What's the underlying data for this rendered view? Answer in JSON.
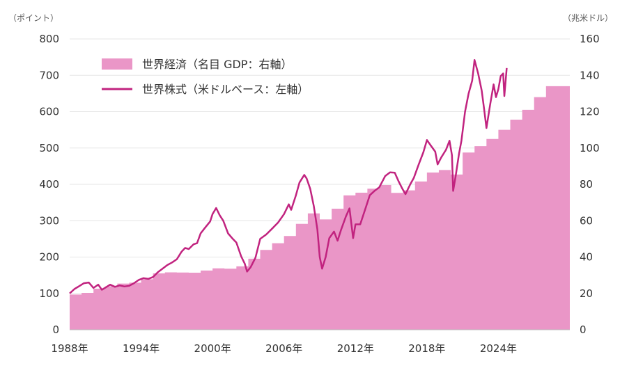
{
  "chart_data": {
    "type": "area",
    "left_unit": "（ポイント）",
    "right_unit": "（兆米ドル）",
    "left_axis": {
      "ylim": [
        0,
        800
      ],
      "ticks": [
        "0",
        "100",
        "200",
        "300",
        "400",
        "500",
        "600",
        "700",
        "800"
      ]
    },
    "right_axis": {
      "ylim": [
        0,
        160
      ],
      "ticks": [
        "0",
        "20",
        "40",
        "60",
        "80",
        "100",
        "120",
        "140",
        "160"
      ]
    },
    "x_range": [
      1988,
      2030
    ],
    "x_tick_values": [
      1988,
      1994,
      2000,
      2006,
      2012,
      2018,
      2024
    ],
    "x_tick_labels": [
      "1988年",
      "1994年",
      "2000年",
      "2006年",
      "2012年",
      "2018年",
      "2024年"
    ],
    "grid": true,
    "legend_position": "top-left",
    "series": [
      {
        "name": "世界経済（名目 GDP：右軸）",
        "kind": "step-area",
        "axis": "right",
        "color": "#ea96c7",
        "years": [
          1988,
          1989,
          1990,
          1991,
          1992,
          1993,
          1994,
          1995,
          1996,
          1997,
          1998,
          1999,
          2000,
          2001,
          2002,
          2003,
          2004,
          2005,
          2006,
          2007,
          2008,
          2009,
          2010,
          2011,
          2012,
          2013,
          2014,
          2015,
          2016,
          2017,
          2018,
          2019,
          2020,
          2021,
          2022,
          2023,
          2024,
          2025,
          2026,
          2027,
          2028,
          2029
        ],
        "values": [
          19.4,
          20.3,
          22.6,
          23.9,
          25.4,
          25.9,
          27.8,
          31.0,
          31.6,
          31.5,
          31.4,
          32.6,
          33.8,
          33.6,
          34.9,
          39.1,
          43.9,
          47.6,
          51.6,
          58.3,
          64.0,
          60.7,
          66.6,
          73.9,
          75.4,
          77.6,
          79.6,
          75.3,
          76.7,
          81.6,
          86.5,
          87.9,
          85.4,
          97.5,
          101.0,
          105.0,
          110.0,
          115.6,
          121.0,
          128.0,
          134.0,
          134.0
        ]
      },
      {
        "name": "世界株式（米ドルベース：左軸）",
        "kind": "line",
        "axis": "left",
        "color": "#c1237f",
        "x": [
          1988.0,
          1988.4,
          1988.8,
          1989.2,
          1989.6,
          1990.0,
          1990.4,
          1990.7,
          1991.0,
          1991.4,
          1991.8,
          1992.2,
          1992.6,
          1993.0,
          1993.4,
          1993.8,
          1994.2,
          1994.6,
          1995.0,
          1995.4,
          1995.8,
          1996.2,
          1996.6,
          1997.0,
          1997.4,
          1997.7,
          1998.0,
          1998.4,
          1998.7,
          1999.0,
          1999.4,
          1999.8,
          2000.0,
          2000.3,
          2000.6,
          2000.9,
          2001.3,
          2001.7,
          2002.0,
          2002.4,
          2002.7,
          2002.9,
          2003.2,
          2003.6,
          2004.0,
          2004.5,
          2005.0,
          2005.5,
          2006.0,
          2006.4,
          2006.6,
          2007.0,
          2007.3,
          2007.7,
          2007.9,
          2008.2,
          2008.5,
          2008.8,
          2009.0,
          2009.2,
          2009.5,
          2009.8,
          2010.2,
          2010.5,
          2010.8,
          2011.2,
          2011.5,
          2011.8,
          2012.0,
          2012.4,
          2012.8,
          2013.2,
          2013.6,
          2014.0,
          2014.5,
          2014.9,
          2015.3,
          2015.6,
          2015.9,
          2016.2,
          2016.6,
          2016.9,
          2017.3,
          2017.7,
          2018.0,
          2018.3,
          2018.7,
          2018.9,
          2019.2,
          2019.6,
          2019.9,
          2020.1,
          2020.2,
          2020.4,
          2020.7,
          2020.9,
          2021.2,
          2021.5,
          2021.8,
          2022.0,
          2022.3,
          2022.6,
          2022.8,
          2023.0,
          2023.3,
          2023.6,
          2023.8,
          2024.0,
          2024.2,
          2024.4,
          2024.5,
          2024.7
        ],
        "values": [
          100,
          112,
          120,
          128,
          130,
          115,
          124,
          110,
          116,
          124,
          118,
          122,
          119,
          121,
          128,
          137,
          142,
          140,
          145,
          158,
          168,
          178,
          185,
          194,
          215,
          225,
          222,
          235,
          238,
          265,
          282,
          298,
          318,
          335,
          315,
          300,
          265,
          250,
          240,
          202,
          182,
          160,
          172,
          198,
          250,
          262,
          278,
          295,
          318,
          345,
          330,
          370,
          405,
          426,
          416,
          388,
          340,
          276,
          200,
          168,
          200,
          252,
          270,
          245,
          276,
          312,
          334,
          252,
          290,
          290,
          330,
          370,
          382,
          392,
          423,
          433,
          432,
          410,
          390,
          373,
          400,
          418,
          454,
          488,
          522,
          508,
          490,
          455,
          474,
          495,
          520,
          480,
          382,
          420,
          485,
          520,
          600,
          650,
          685,
          742,
          705,
          658,
          608,
          555,
          618,
          675,
          640,
          662,
          698,
          705,
          643,
          720
        ]
      }
    ]
  }
}
